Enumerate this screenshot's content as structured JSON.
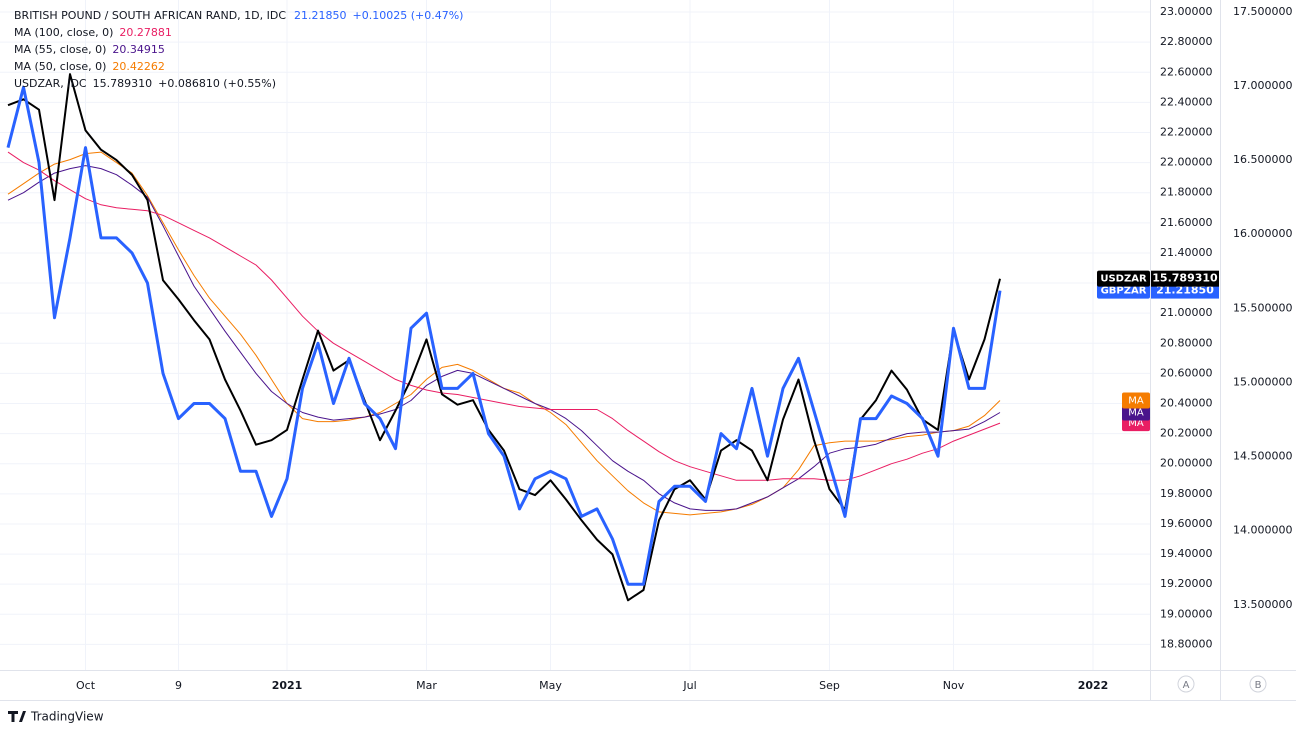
{
  "chart_data": {
    "type": "line",
    "title": "BRITISH POUND / SOUTH AFRICAN RAND, 1D, IDC",
    "title_value": "21.21850",
    "title_change": "+0.10025 (+0.47%)",
    "categories": [
      null,
      null,
      null,
      null,
      null,
      "Oct",
      null,
      null,
      null,
      null,
      null,
      "9",
      null,
      null,
      null,
      null,
      null,
      null,
      "2021",
      null,
      null,
      null,
      null,
      null,
      null,
      null,
      null,
      "Mar",
      null,
      null,
      null,
      null,
      null,
      null,
      null,
      "May",
      null,
      null,
      null,
      null,
      null,
      null,
      null,
      null,
      "Jul",
      null,
      null,
      null,
      null,
      null,
      null,
      null,
      null,
      "Sep",
      null,
      null,
      null,
      null,
      null,
      null,
      null,
      "Nov",
      null,
      null,
      null,
      null,
      null,
      null,
      null,
      null,
      "2022",
      null,
      null,
      null
    ],
    "series": [
      {
        "name": "GBPZAR",
        "color": "#2962ff",
        "last_label": "21.21850",
        "values": [
          22.1,
          22.5,
          22.0,
          20.97,
          21.5,
          22.1,
          21.5,
          21.5,
          21.4,
          21.2,
          20.6,
          20.3,
          20.4,
          20.4,
          20.3,
          19.95,
          19.95,
          19.65,
          19.9,
          20.5,
          20.8,
          20.4,
          20.7,
          20.4,
          20.3,
          20.1,
          20.9,
          21.0,
          20.5,
          20.5,
          20.6,
          20.2,
          20.05,
          19.7,
          19.9,
          19.95,
          19.9,
          19.65,
          19.7,
          19.5,
          19.2,
          19.2,
          19.75,
          19.85,
          19.85,
          19.75,
          20.2,
          20.1,
          20.5,
          20.05,
          20.5,
          20.7,
          20.35,
          20.0,
          19.65,
          20.3,
          20.3,
          20.45,
          20.4,
          20.3,
          20.05,
          20.9,
          20.5,
          20.5,
          21.15,
          null,
          null,
          null,
          null,
          null,
          null,
          null,
          null,
          null
        ]
      },
      {
        "name": "USDZAR",
        "color": "#000000",
        "axis": "y2",
        "legend_text": "USDZAR, IDC",
        "legend_value": "15.789310",
        "legend_change": "+0.086810 (+0.55%)",
        "last_label": "15.789310",
        "values": [
          16.87,
          16.91,
          16.84,
          16.23,
          17.08,
          16.7,
          16.57,
          16.5,
          16.4,
          16.23,
          15.69,
          15.56,
          15.42,
          15.29,
          15.02,
          14.81,
          14.58,
          14.61,
          14.68,
          15.02,
          15.35,
          15.08,
          15.15,
          14.88,
          14.61,
          14.81,
          15.02,
          15.29,
          14.92,
          14.85,
          14.88,
          14.68,
          14.54,
          14.28,
          14.24,
          14.34,
          14.21,
          14.07,
          13.94,
          13.84,
          13.53,
          13.6,
          14.07,
          14.28,
          14.34,
          14.21,
          14.54,
          14.61,
          14.54,
          14.34,
          14.75,
          15.02,
          14.61,
          14.28,
          14.14,
          14.75,
          14.88,
          15.08,
          14.95,
          14.75,
          14.68,
          15.35,
          15.02,
          15.29,
          15.7,
          null,
          null,
          null,
          null,
          null,
          null,
          null,
          null,
          null
        ]
      },
      {
        "name": "MA",
        "color": "#e91e63",
        "legend_text": "MA (100, close, 0)",
        "legend_value": "20.27881",
        "values": [
          22.07,
          22.0,
          21.95,
          21.88,
          21.82,
          21.76,
          21.72,
          21.7,
          21.69,
          21.68,
          21.65,
          21.6,
          21.55,
          21.5,
          21.44,
          21.38,
          21.32,
          21.22,
          21.1,
          20.98,
          20.88,
          20.8,
          20.74,
          20.68,
          20.62,
          20.56,
          20.52,
          20.49,
          20.47,
          20.46,
          20.44,
          20.42,
          20.4,
          20.38,
          20.37,
          20.36,
          20.36,
          20.36,
          20.36,
          20.3,
          20.22,
          20.15,
          20.08,
          20.02,
          19.98,
          19.95,
          19.92,
          19.89,
          19.89,
          19.89,
          19.9,
          19.9,
          19.9,
          19.89,
          19.89,
          19.92,
          19.96,
          20.0,
          20.03,
          20.07,
          20.1,
          20.15,
          20.19,
          20.23,
          20.27,
          null,
          null,
          null,
          null,
          null,
          null,
          null,
          null,
          null
        ]
      },
      {
        "name": "MA",
        "color": "#4a148c",
        "legend_text": "MA (55, close, 0)",
        "legend_value": "20.34915",
        "values": [
          21.75,
          21.8,
          21.87,
          21.93,
          21.96,
          21.98,
          21.96,
          21.92,
          21.85,
          21.77,
          21.58,
          21.38,
          21.18,
          21.03,
          20.88,
          20.74,
          20.6,
          20.48,
          20.4,
          20.34,
          20.31,
          20.29,
          20.3,
          20.31,
          20.33,
          20.36,
          20.42,
          20.52,
          20.58,
          20.62,
          20.6,
          20.55,
          20.5,
          20.45,
          20.4,
          20.36,
          20.3,
          20.22,
          20.12,
          20.02,
          19.95,
          19.89,
          19.8,
          19.74,
          19.7,
          19.69,
          19.69,
          19.7,
          19.74,
          19.78,
          19.84,
          19.9,
          19.98,
          20.07,
          20.1,
          20.11,
          20.13,
          20.17,
          20.2,
          20.21,
          20.21,
          20.22,
          20.23,
          20.28,
          20.34,
          null,
          null,
          null,
          null,
          null,
          null,
          null,
          null,
          null
        ]
      },
      {
        "name": "MA",
        "color": "#f57c00",
        "legend_text": "MA (50, close, 0)",
        "legend_value": "20.42262",
        "values": [
          21.79,
          21.86,
          21.93,
          21.99,
          22.02,
          22.06,
          22.07,
          22.0,
          21.93,
          21.78,
          21.6,
          21.42,
          21.25,
          21.1,
          20.98,
          20.86,
          20.72,
          20.56,
          20.4,
          20.3,
          20.28,
          20.28,
          20.29,
          20.31,
          20.34,
          20.4,
          20.46,
          20.56,
          20.64,
          20.66,
          20.62,
          20.56,
          20.5,
          20.47,
          20.4,
          20.34,
          20.26,
          20.14,
          20.02,
          19.92,
          19.82,
          19.74,
          19.68,
          19.67,
          19.66,
          19.67,
          19.68,
          19.7,
          19.73,
          19.78,
          19.84,
          19.96,
          20.12,
          20.14,
          20.15,
          20.15,
          20.15,
          20.16,
          20.18,
          20.19,
          20.21,
          20.22,
          20.25,
          20.32,
          20.42,
          null,
          null,
          null,
          null,
          null,
          null,
          null,
          null,
          null
        ]
      }
    ],
    "ylim": [
      18.63,
      23.08
    ],
    "yticks": [
      {
        "value": 18.8,
        "label": "18.80000"
      },
      {
        "value": 19,
        "label": "19.00000"
      },
      {
        "value": 19.2,
        "label": "19.20000"
      },
      {
        "value": 19.4,
        "label": "19.40000"
      },
      {
        "value": 19.6,
        "label": "19.60000"
      },
      {
        "value": 19.8,
        "label": "19.80000"
      },
      {
        "value": 20,
        "label": "20.00000"
      },
      {
        "value": 20.2,
        "label": "20.20000"
      },
      {
        "value": 20.4,
        "label": "20.40000"
      },
      {
        "value": 20.6,
        "label": "20.60000"
      },
      {
        "value": 20.8,
        "label": "20.80000"
      },
      {
        "value": 21,
        "label": "21.00000"
      },
      {
        "value": 21.2,
        "label": "21.20000"
      },
      {
        "value": 21.4,
        "label": "21.40000"
      },
      {
        "value": 21.6,
        "label": "21.60000"
      },
      {
        "value": 21.8,
        "label": "21.80000"
      },
      {
        "value": 22,
        "label": "22.00000"
      },
      {
        "value": 22.2,
        "label": "22.20000"
      },
      {
        "value": 22.4,
        "label": "22.40000"
      },
      {
        "value": 22.6,
        "label": "22.60000"
      },
      {
        "value": 22.8,
        "label": "22.80000"
      },
      {
        "value": 23,
        "label": "23.00000"
      }
    ],
    "y2lim": [
      13.06,
      17.58
    ],
    "y2ticks": [
      {
        "value": 13.5,
        "label": "13.500000"
      },
      {
        "value": 14,
        "label": "14.000000"
      },
      {
        "value": 14.5,
        "label": "14.500000"
      },
      {
        "value": 15,
        "label": "15.000000"
      },
      {
        "value": 15.5,
        "label": "15.500000"
      },
      {
        "value": 16,
        "label": "16.000000"
      },
      {
        "value": 16.5,
        "label": "16.500000"
      },
      {
        "value": 17,
        "label": "17.000000"
      },
      {
        "value": 17.5,
        "label": "17.500000"
      }
    ],
    "grid": true,
    "scale_buttons": [
      "A",
      "B"
    ],
    "brand": "TradingView"
  }
}
